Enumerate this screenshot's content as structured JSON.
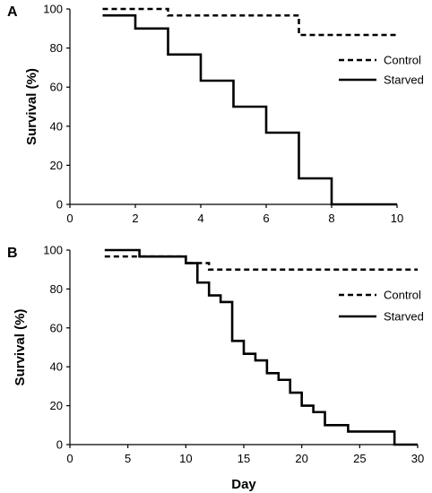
{
  "chart_data": [
    {
      "type": "line",
      "panel_label": "A",
      "xlabel": "",
      "ylabel": "Survival (%)",
      "xlim": [
        0,
        10
      ],
      "ylim": [
        0,
        100
      ],
      "x_ticks": [
        0,
        2,
        4,
        6,
        8,
        10
      ],
      "y_ticks": [
        0,
        20,
        40,
        60,
        80,
        100
      ],
      "grid": false,
      "legend_position": "right",
      "series": [
        {
          "name": "Control",
          "style": "dashed",
          "color": "#000000",
          "step": true,
          "x": [
            1,
            3,
            7,
            10
          ],
          "y": [
            100,
            96.7,
            86.7,
            86.7
          ]
        },
        {
          "name": "Starved",
          "style": "solid",
          "color": "#000000",
          "step": true,
          "x": [
            1,
            2,
            3,
            4,
            5,
            6,
            7,
            8,
            10
          ],
          "y": [
            96.7,
            90,
            76.7,
            63.3,
            50,
            36.7,
            13.3,
            0,
            0
          ]
        }
      ]
    },
    {
      "type": "line",
      "panel_label": "B",
      "xlabel": "Day",
      "ylabel": "Survival (%)",
      "xlim": [
        0,
        30
      ],
      "ylim": [
        0,
        100
      ],
      "x_ticks": [
        0,
        5,
        10,
        15,
        20,
        25,
        30
      ],
      "y_ticks": [
        0,
        20,
        40,
        60,
        80,
        100
      ],
      "grid": false,
      "legend_position": "right",
      "series": [
        {
          "name": "Control",
          "style": "dashed",
          "color": "#000000",
          "step": true,
          "x": [
            3,
            6,
            10,
            12,
            30
          ],
          "y": [
            96.7,
            96.7,
            93.3,
            90,
            90
          ]
        },
        {
          "name": "Starved",
          "style": "solid",
          "color": "#000000",
          "step": true,
          "x": [
            3,
            6,
            10,
            11,
            12,
            13,
            14,
            15,
            16,
            17,
            18,
            19,
            20,
            21,
            22,
            24,
            28,
            30
          ],
          "y": [
            100,
            96.7,
            93.3,
            83.3,
            76.7,
            73.3,
            53.3,
            46.7,
            43.3,
            36.7,
            33.3,
            26.7,
            20,
            16.7,
            10,
            6.7,
            0,
            0
          ]
        }
      ]
    }
  ]
}
